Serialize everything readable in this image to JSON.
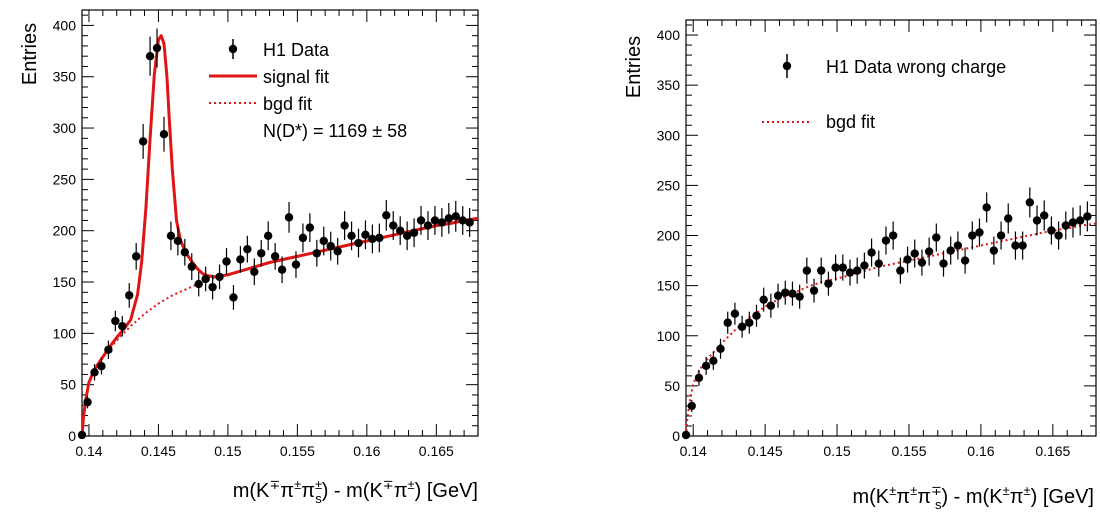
{
  "chart_data": [
    {
      "type": "scatter",
      "title": "",
      "xlabel_parts": [
        "m(K",
        "∓",
        "π",
        "±",
        "π",
        "±",
        "s",
        ") - m(K",
        "∓",
        "π",
        "±",
        ") [GeV]"
      ],
      "ylabel": "Entries",
      "xlim": [
        0.1395,
        0.168
      ],
      "ylim": [
        0,
        415
      ],
      "xticks": [
        0.14,
        0.145,
        0.15,
        0.155,
        0.16,
        0.165
      ],
      "xtick_labels": [
        "0.14",
        "0.145",
        "0.15",
        "0.155",
        "0.16",
        "0.165"
      ],
      "yticks": [
        0,
        50,
        100,
        150,
        200,
        250,
        300,
        350,
        400
      ],
      "ytick_labels": [
        "0",
        "50",
        "100",
        "150",
        "200",
        "250",
        "300",
        "350",
        "400"
      ],
      "legend": {
        "position": "top-right",
        "entries": [
          {
            "label": "H1 Data",
            "style": "marker"
          },
          {
            "label": "signal fit",
            "style": "solid",
            "color": "#e01515"
          },
          {
            "label": "bgd fit",
            "style": "dotted",
            "color": "#e01515"
          }
        ],
        "annotation": "N(D*) = 1169 ± 58"
      },
      "series": [
        {
          "name": "H1 Data",
          "style": "marker",
          "x": [
            0.1395,
            0.1399,
            0.1404,
            0.1409,
            0.1414,
            0.1419,
            0.1424,
            0.1429,
            0.1434,
            0.1439,
            0.1444,
            0.1449,
            0.1454,
            0.1459,
            0.1464,
            0.1469,
            0.1474,
            0.1479,
            0.1484,
            0.1489,
            0.1494,
            0.1499,
            0.1504,
            0.1509,
            0.1514,
            0.1519,
            0.1524,
            0.1529,
            0.1534,
            0.1539,
            0.1544,
            0.1549,
            0.1554,
            0.1559,
            0.1564,
            0.1569,
            0.1574,
            0.1579,
            0.1584,
            0.1589,
            0.1594,
            0.1599,
            0.1604,
            0.1609,
            0.1614,
            0.1619,
            0.1624,
            0.1629,
            0.1634,
            0.1639,
            0.1644,
            0.1649,
            0.1654,
            0.1659,
            0.1664,
            0.1669,
            0.1674
          ],
          "y": [
            1,
            33,
            62,
            68,
            84,
            112,
            107,
            137,
            175,
            287,
            370,
            378,
            294,
            195,
            190,
            179,
            165,
            148,
            153,
            145,
            155,
            170,
            135,
            172,
            182,
            160,
            178,
            195,
            175,
            162,
            213,
            167,
            193,
            203,
            178,
            190,
            185,
            180,
            205,
            195,
            188,
            196,
            192,
            193,
            215,
            205,
            200,
            195,
            198,
            210,
            205,
            210,
            208,
            212,
            214,
            210,
            208
          ],
          "err": [
            1,
            6,
            8,
            8,
            9,
            10,
            10,
            12,
            13,
            17,
            19,
            19,
            17,
            14,
            14,
            13,
            13,
            12,
            12,
            12,
            12,
            13,
            12,
            13,
            13,
            13,
            13,
            14,
            13,
            13,
            15,
            13,
            14,
            14,
            13,
            14,
            14,
            13,
            14,
            14,
            14,
            14,
            14,
            14,
            15,
            14,
            14,
            14,
            14,
            14,
            14,
            14,
            14,
            15,
            15,
            14,
            14
          ]
        },
        {
          "name": "signal fit",
          "style": "solid",
          "color": "#e01515",
          "x": [
            0.1395,
            0.1396,
            0.1398,
            0.14,
            0.1403,
            0.1406,
            0.141,
            0.1415,
            0.142,
            0.1425,
            0.143,
            0.1435,
            0.1438,
            0.1441,
            0.1444,
            0.1447,
            0.145,
            0.1452,
            0.1454,
            0.1456,
            0.1458,
            0.146,
            0.1463,
            0.1466,
            0.147,
            0.1474,
            0.1478,
            0.1482,
            0.1486,
            0.149,
            0.1495,
            0.15,
            0.151,
            0.152,
            0.153,
            0.154,
            0.155,
            0.156,
            0.157,
            0.158,
            0.159,
            0.16,
            0.161,
            0.162,
            0.163,
            0.164,
            0.165,
            0.166,
            0.167,
            0.168
          ],
          "y": [
            0,
            18,
            38,
            52,
            62,
            69,
            77,
            87,
            96,
            104,
            113,
            138,
            170,
            222,
            290,
            352,
            386,
            390,
            382,
            352,
            305,
            260,
            210,
            190,
            178,
            170,
            163,
            158,
            156,
            155,
            156,
            157,
            161,
            165,
            169,
            172,
            175,
            178,
            181,
            184,
            187,
            190,
            193,
            196,
            199,
            202,
            205,
            207,
            210,
            212
          ]
        },
        {
          "name": "bgd fit",
          "style": "dotted",
          "color": "#e01515",
          "x": [
            0.1395,
            0.1396,
            0.1398,
            0.14,
            0.1403,
            0.1406,
            0.141,
            0.1415,
            0.142,
            0.1425,
            0.143,
            0.1435,
            0.144,
            0.1445,
            0.145,
            0.146,
            0.147,
            0.148,
            0.149,
            0.15,
            0.151,
            0.152,
            0.153,
            0.154,
            0.155,
            0.156,
            0.157,
            0.158,
            0.159,
            0.16,
            0.161,
            0.162,
            0.163,
            0.164,
            0.165,
            0.166,
            0.167,
            0.168
          ],
          "y": [
            0,
            18,
            38,
            52,
            62,
            69,
            77,
            85,
            93,
            100,
            107,
            113,
            119,
            124,
            129,
            137,
            143,
            149,
            154,
            157,
            161,
            165,
            169,
            172,
            175,
            178,
            181,
            184,
            187,
            190,
            193,
            196,
            199,
            202,
            205,
            207,
            210,
            212
          ]
        }
      ]
    },
    {
      "type": "scatter",
      "title": "",
      "xlabel_parts": [
        "m(K",
        "±",
        "π",
        "±",
        "π",
        "∓",
        "s",
        ") - m(K",
        "±",
        "π",
        "±",
        ") [GeV]"
      ],
      "ylabel": "Entries",
      "xlim": [
        0.1395,
        0.168
      ],
      "ylim": [
        0,
        415
      ],
      "xticks": [
        0.14,
        0.145,
        0.15,
        0.155,
        0.16,
        0.165
      ],
      "xtick_labels": [
        "0.14",
        "0.145",
        "0.15",
        "0.155",
        "0.16",
        "0.165"
      ],
      "yticks": [
        0,
        50,
        100,
        150,
        200,
        250,
        300,
        350,
        400
      ],
      "ytick_labels": [
        "0",
        "50",
        "100",
        "150",
        "200",
        "250",
        "300",
        "350",
        "400"
      ],
      "legend": {
        "position": "top-right",
        "entries": [
          {
            "label": "H1 Data wrong charge",
            "style": "marker"
          },
          {
            "label": "bgd fit",
            "style": "dotted",
            "color": "#e01515"
          }
        ]
      },
      "series": [
        {
          "name": "H1 Data wrong charge",
          "style": "marker",
          "x": [
            0.1395,
            0.1399,
            0.1404,
            0.1409,
            0.1414,
            0.1419,
            0.1424,
            0.1429,
            0.1434,
            0.1439,
            0.1444,
            0.1449,
            0.1454,
            0.1459,
            0.1464,
            0.1469,
            0.1474,
            0.1479,
            0.1484,
            0.1489,
            0.1494,
            0.1499,
            0.1504,
            0.1509,
            0.1514,
            0.1519,
            0.1524,
            0.1529,
            0.1534,
            0.1539,
            0.1544,
            0.1549,
            0.1554,
            0.1559,
            0.1564,
            0.1569,
            0.1574,
            0.1579,
            0.1584,
            0.1589,
            0.1594,
            0.1599,
            0.1604,
            0.1609,
            0.1614,
            0.1619,
            0.1624,
            0.1629,
            0.1634,
            0.1639,
            0.1644,
            0.1649,
            0.1654,
            0.1659,
            0.1664,
            0.1669,
            0.1674
          ],
          "y": [
            1,
            30,
            58,
            70,
            75,
            87,
            113,
            122,
            109,
            113,
            120,
            136,
            130,
            140,
            143,
            142,
            139,
            165,
            145,
            165,
            152,
            168,
            168,
            163,
            165,
            170,
            183,
            172,
            195,
            200,
            165,
            176,
            182,
            173,
            184,
            198,
            172,
            185,
            190,
            175,
            200,
            203,
            228,
            185,
            200,
            217,
            190,
            190,
            233,
            215,
            220,
            205,
            200,
            210,
            213,
            215,
            219
          ],
          "err": [
            1,
            6,
            8,
            9,
            9,
            10,
            11,
            11,
            11,
            11,
            11,
            12,
            12,
            12,
            12,
            12,
            12,
            13,
            12,
            13,
            12,
            13,
            13,
            13,
            13,
            13,
            14,
            13,
            14,
            14,
            13,
            13,
            14,
            13,
            14,
            14,
            13,
            14,
            14,
            13,
            14,
            14,
            15,
            14,
            14,
            15,
            14,
            14,
            15,
            15,
            15,
            14,
            14,
            14,
            15,
            15,
            15
          ]
        },
        {
          "name": "bgd fit",
          "style": "dotted",
          "color": "#e01515",
          "x": [
            0.1395,
            0.1396,
            0.1398,
            0.14,
            0.1403,
            0.1406,
            0.141,
            0.1415,
            0.142,
            0.1425,
            0.143,
            0.1435,
            0.144,
            0.1445,
            0.145,
            0.146,
            0.147,
            0.148,
            0.149,
            0.15,
            0.151,
            0.152,
            0.153,
            0.154,
            0.155,
            0.156,
            0.157,
            0.158,
            0.159,
            0.16,
            0.161,
            0.162,
            0.163,
            0.164,
            0.165,
            0.166,
            0.167,
            0.168
          ],
          "y": [
            0,
            18,
            38,
            52,
            62,
            69,
            77,
            85,
            93,
            100,
            107,
            113,
            119,
            124,
            129,
            137,
            143,
            149,
            154,
            157,
            161,
            165,
            169,
            172,
            175,
            178,
            181,
            184,
            187,
            190,
            193,
            196,
            199,
            202,
            205,
            207,
            210,
            212
          ]
        }
      ]
    }
  ]
}
